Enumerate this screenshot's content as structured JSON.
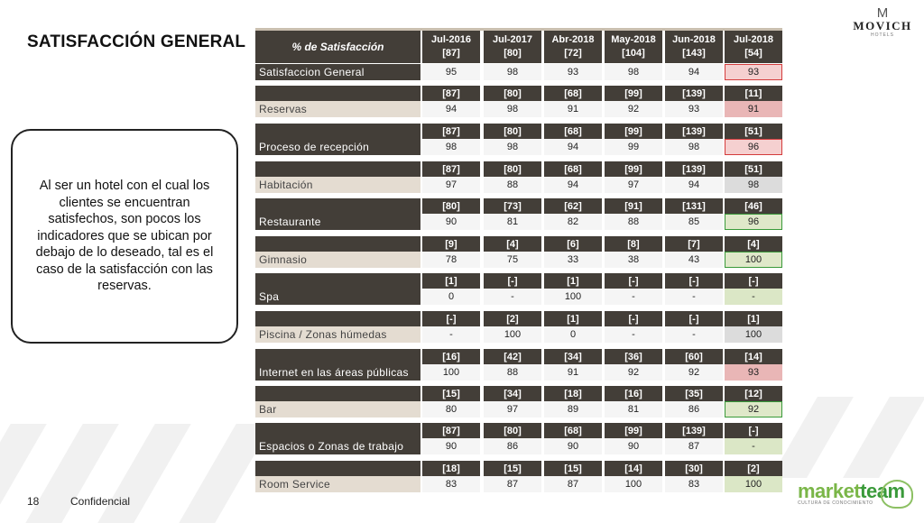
{
  "slide": {
    "title": "SATISFACCIÓN GENERAL",
    "note": "Al ser un hotel con el cual los clientes se encuentran satisfechos, son pocos los indicadores que se ubican por debajo de lo deseado, tal es el caso de la satisfacción con las reservas.",
    "page_number": "18",
    "footer": "Confidencial"
  },
  "logos": {
    "movich": {
      "name": "MOVICH",
      "sub": "HOTELS",
      "mark": "M"
    },
    "marketteam": {
      "name_a": "market",
      "name_b": "team",
      "tagline": "CULTURA DE CONOCIMIENTO"
    }
  },
  "colors": {
    "header": "#433e38",
    "label_light": "#e4dcd1",
    "below_target_red": "#d43c3c",
    "above_target_green": "#3a9a3a"
  },
  "table": {
    "header_label": "% de Satisfacción",
    "columns": [
      {
        "period": "Jul-2016",
        "n": "[87]"
      },
      {
        "period": "Jul-2017",
        "n": "[80]"
      },
      {
        "period": "Abr-2018",
        "n": "[72]"
      },
      {
        "period": "May-2018",
        "n": "[104]"
      },
      {
        "period": "Jun-2018",
        "n": "[143]"
      },
      {
        "period": "Jul-2018",
        "n": "[54]"
      }
    ],
    "rows": [
      {
        "label": "Satisfaccion General",
        "label_style": "dark",
        "counts": null,
        "values": [
          "95",
          "98",
          "93",
          "98",
          "94",
          "93"
        ],
        "last_highlight": "red"
      },
      {
        "label": "Reservas",
        "label_style": "light",
        "counts": [
          "[87]",
          "[80]",
          "[68]",
          "[99]",
          "[139]",
          "[11]"
        ],
        "values": [
          "94",
          "98",
          "91",
          "92",
          "93",
          "91"
        ],
        "last_highlight": "pink"
      },
      {
        "label": "Proceso de recepción",
        "label_style": "dark",
        "counts": [
          "[87]",
          "[80]",
          "[68]",
          "[99]",
          "[139]",
          "[51]"
        ],
        "values": [
          "98",
          "98",
          "94",
          "99",
          "98",
          "96"
        ],
        "last_highlight": "red"
      },
      {
        "label": "Habitación",
        "label_style": "light",
        "counts": [
          "[87]",
          "[80]",
          "[68]",
          "[99]",
          "[139]",
          "[51]"
        ],
        "values": [
          "97",
          "88",
          "94",
          "97",
          "94",
          "98"
        ],
        "last_highlight": "grey"
      },
      {
        "label": "Restaurante",
        "label_style": "dark",
        "counts": [
          "[80]",
          "[73]",
          "[62]",
          "[91]",
          "[131]",
          "[46]"
        ],
        "values": [
          "90",
          "81",
          "82",
          "88",
          "85",
          "96"
        ],
        "last_highlight": "green"
      },
      {
        "label": "Gimnasio",
        "label_style": "light",
        "counts": [
          "[9]",
          "[4]",
          "[6]",
          "[8]",
          "[7]",
          "[4]"
        ],
        "values": [
          "78",
          "75",
          "33",
          "38",
          "43",
          "100"
        ],
        "last_highlight": "green"
      },
      {
        "label": "Spa",
        "label_style": "dark",
        "counts": [
          "[1]",
          "[-]",
          "[1]",
          "[-]",
          "[-]",
          "[-]"
        ],
        "values": [
          "0",
          "-",
          "100",
          "-",
          "-",
          "-"
        ],
        "last_highlight": "lgreen"
      },
      {
        "label": "Piscina / Zonas húmedas",
        "label_style": "light",
        "counts": [
          "[-]",
          "[2]",
          "[1]",
          "[-]",
          "[-]",
          "[1]"
        ],
        "values": [
          "-",
          "100",
          "0",
          "-",
          "-",
          "100"
        ],
        "last_highlight": "grey"
      },
      {
        "label": "Internet en las áreas públicas",
        "label_style": "dark",
        "counts": [
          "[16]",
          "[42]",
          "[34]",
          "[36]",
          "[60]",
          "[14]"
        ],
        "values": [
          "100",
          "88",
          "91",
          "92",
          "92",
          "93"
        ],
        "last_highlight": "pink"
      },
      {
        "label": "Bar",
        "label_style": "light",
        "counts": [
          "[15]",
          "[34]",
          "[18]",
          "[16]",
          "[35]",
          "[12]"
        ],
        "values": [
          "80",
          "97",
          "89",
          "81",
          "86",
          "92"
        ],
        "last_highlight": "green"
      },
      {
        "label": "Espacios o Zonas de trabajo",
        "label_style": "dark",
        "counts": [
          "[87]",
          "[80]",
          "[68]",
          "[99]",
          "[139]",
          "[-]"
        ],
        "values": [
          "90",
          "86",
          "90",
          "90",
          "87",
          "-"
        ],
        "last_highlight": "lgreen"
      },
      {
        "label": "Room Service",
        "label_style": "light",
        "counts": [
          "[18]",
          "[15]",
          "[15]",
          "[14]",
          "[30]",
          "[2]"
        ],
        "values": [
          "83",
          "87",
          "87",
          "100",
          "83",
          "100"
        ],
        "last_highlight": "lgreen"
      }
    ]
  }
}
